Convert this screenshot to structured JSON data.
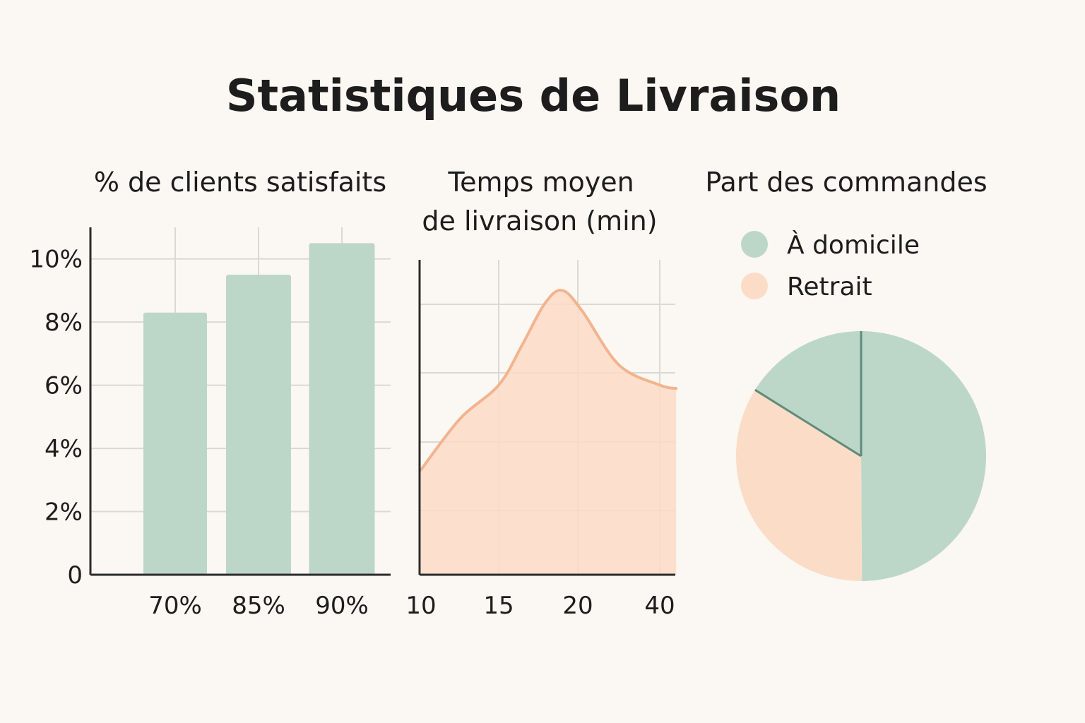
{
  "title": "Statistiques de Livraison",
  "colors": {
    "background": "#fbf7f2",
    "green": "#bcd7c8",
    "peach": "#fbdcc7",
    "peach_line": "#f2b48f",
    "grid": "#dcd8d2",
    "axis": "#2b2b2b",
    "pie_edge": "#5f8b7a"
  },
  "chart_data": [
    {
      "type": "bar",
      "title": "% de clients satisfaits",
      "categories": [
        "70%",
        "85%",
        "90%"
      ],
      "values": [
        8.3,
        9.5,
        10.5
      ],
      "ylim": [
        0,
        11
      ],
      "yticks": [
        0,
        2,
        4,
        6,
        8,
        10
      ],
      "ytick_labels": [
        "0",
        "2%",
        "4%",
        "6%",
        "8%",
        "10%"
      ],
      "grid": true
    },
    {
      "type": "area",
      "title_lines": [
        "Temps moyen",
        "de livraison (min)"
      ],
      "xtick_labels": [
        "10",
        "15",
        "20",
        "40"
      ],
      "x_positions": [
        0,
        1,
        2,
        3
      ],
      "points": [
        {
          "x": 0.0,
          "y": 3.1
        },
        {
          "x": 0.5,
          "y": 4.6
        },
        {
          "x": 1.0,
          "y": 5.6
        },
        {
          "x": 1.3,
          "y": 6.8
        },
        {
          "x": 1.58,
          "y": 8.0
        },
        {
          "x": 1.8,
          "y": 8.4
        },
        {
          "x": 2.05,
          "y": 7.8
        },
        {
          "x": 2.5,
          "y": 6.2
        },
        {
          "x": 3.0,
          "y": 5.6
        },
        {
          "x": 3.2,
          "y": 5.5
        }
      ],
      "ylim": [
        0,
        9.3
      ],
      "grid": true
    },
    {
      "type": "pie",
      "title": "Part des commandes",
      "legend": [
        "À domicile",
        "Retrait"
      ],
      "slices": [
        {
          "name": "À domicile",
          "value": 66
        },
        {
          "name": "Retrait",
          "value": 34
        }
      ],
      "legend_position": "top"
    }
  ]
}
